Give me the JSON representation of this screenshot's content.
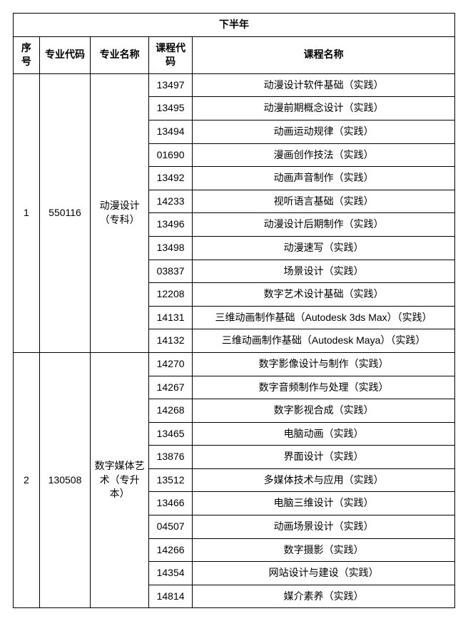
{
  "title": "下半年",
  "columns": {
    "seq": "序号",
    "major_code": "专业代码",
    "major_name": "专业名称",
    "course_code": "课程代码",
    "course_name": "课程名称"
  },
  "col_widths": {
    "seq": 36,
    "major_code": 70,
    "major_name": 80,
    "course_code": 60,
    "course_name": 360
  },
  "font_size": 14,
  "border_color": "#000000",
  "background_color": "#ffffff",
  "majors": [
    {
      "seq": "1",
      "major_code": "550116",
      "major_name": "动漫设计（专科）",
      "courses": [
        {
          "code": "13497",
          "name": "动漫设计软件基础（实践）"
        },
        {
          "code": "13495",
          "name": "动漫前期概念设计（实践）"
        },
        {
          "code": "13494",
          "name": "动画运动规律（实践）"
        },
        {
          "code": "01690",
          "name": "漫画创作技法（实践）"
        },
        {
          "code": "13492",
          "name": "动画声音制作（实践）"
        },
        {
          "code": "14233",
          "name": "视听语言基础（实践）"
        },
        {
          "code": "13496",
          "name": "动漫设计后期制作（实践）"
        },
        {
          "code": "13498",
          "name": "动漫速写（实践）"
        },
        {
          "code": "03837",
          "name": "场景设计（实践）"
        },
        {
          "code": "12208",
          "name": "数字艺术设计基础（实践）"
        },
        {
          "code": "14131",
          "name": "三维动画制作基础（Autodesk 3ds Max）（实践）"
        },
        {
          "code": "14132",
          "name": "三维动画制作基础（Autodesk Maya）（实践）"
        }
      ]
    },
    {
      "seq": "2",
      "major_code": "130508",
      "major_name": "数字媒体艺术（专升本）",
      "courses": [
        {
          "code": "14270",
          "name": "数字影像设计与制作（实践）"
        },
        {
          "code": "14267",
          "name": "数字音频制作与处理（实践）"
        },
        {
          "code": "14268",
          "name": "数字影视合成（实践）"
        },
        {
          "code": "13465",
          "name": "电脑动画（实践）"
        },
        {
          "code": "13876",
          "name": "界面设计（实践）"
        },
        {
          "code": "13512",
          "name": "多媒体技术与应用（实践）"
        },
        {
          "code": "13466",
          "name": "电脑三维设计（实践）"
        },
        {
          "code": "04507",
          "name": "动画场景设计（实践）"
        },
        {
          "code": "14266",
          "name": "数字摄影（实践）"
        },
        {
          "code": "14354",
          "name": "网站设计与建设（实践）"
        },
        {
          "code": "14814",
          "name": "媒介素养（实践）"
        }
      ]
    }
  ]
}
